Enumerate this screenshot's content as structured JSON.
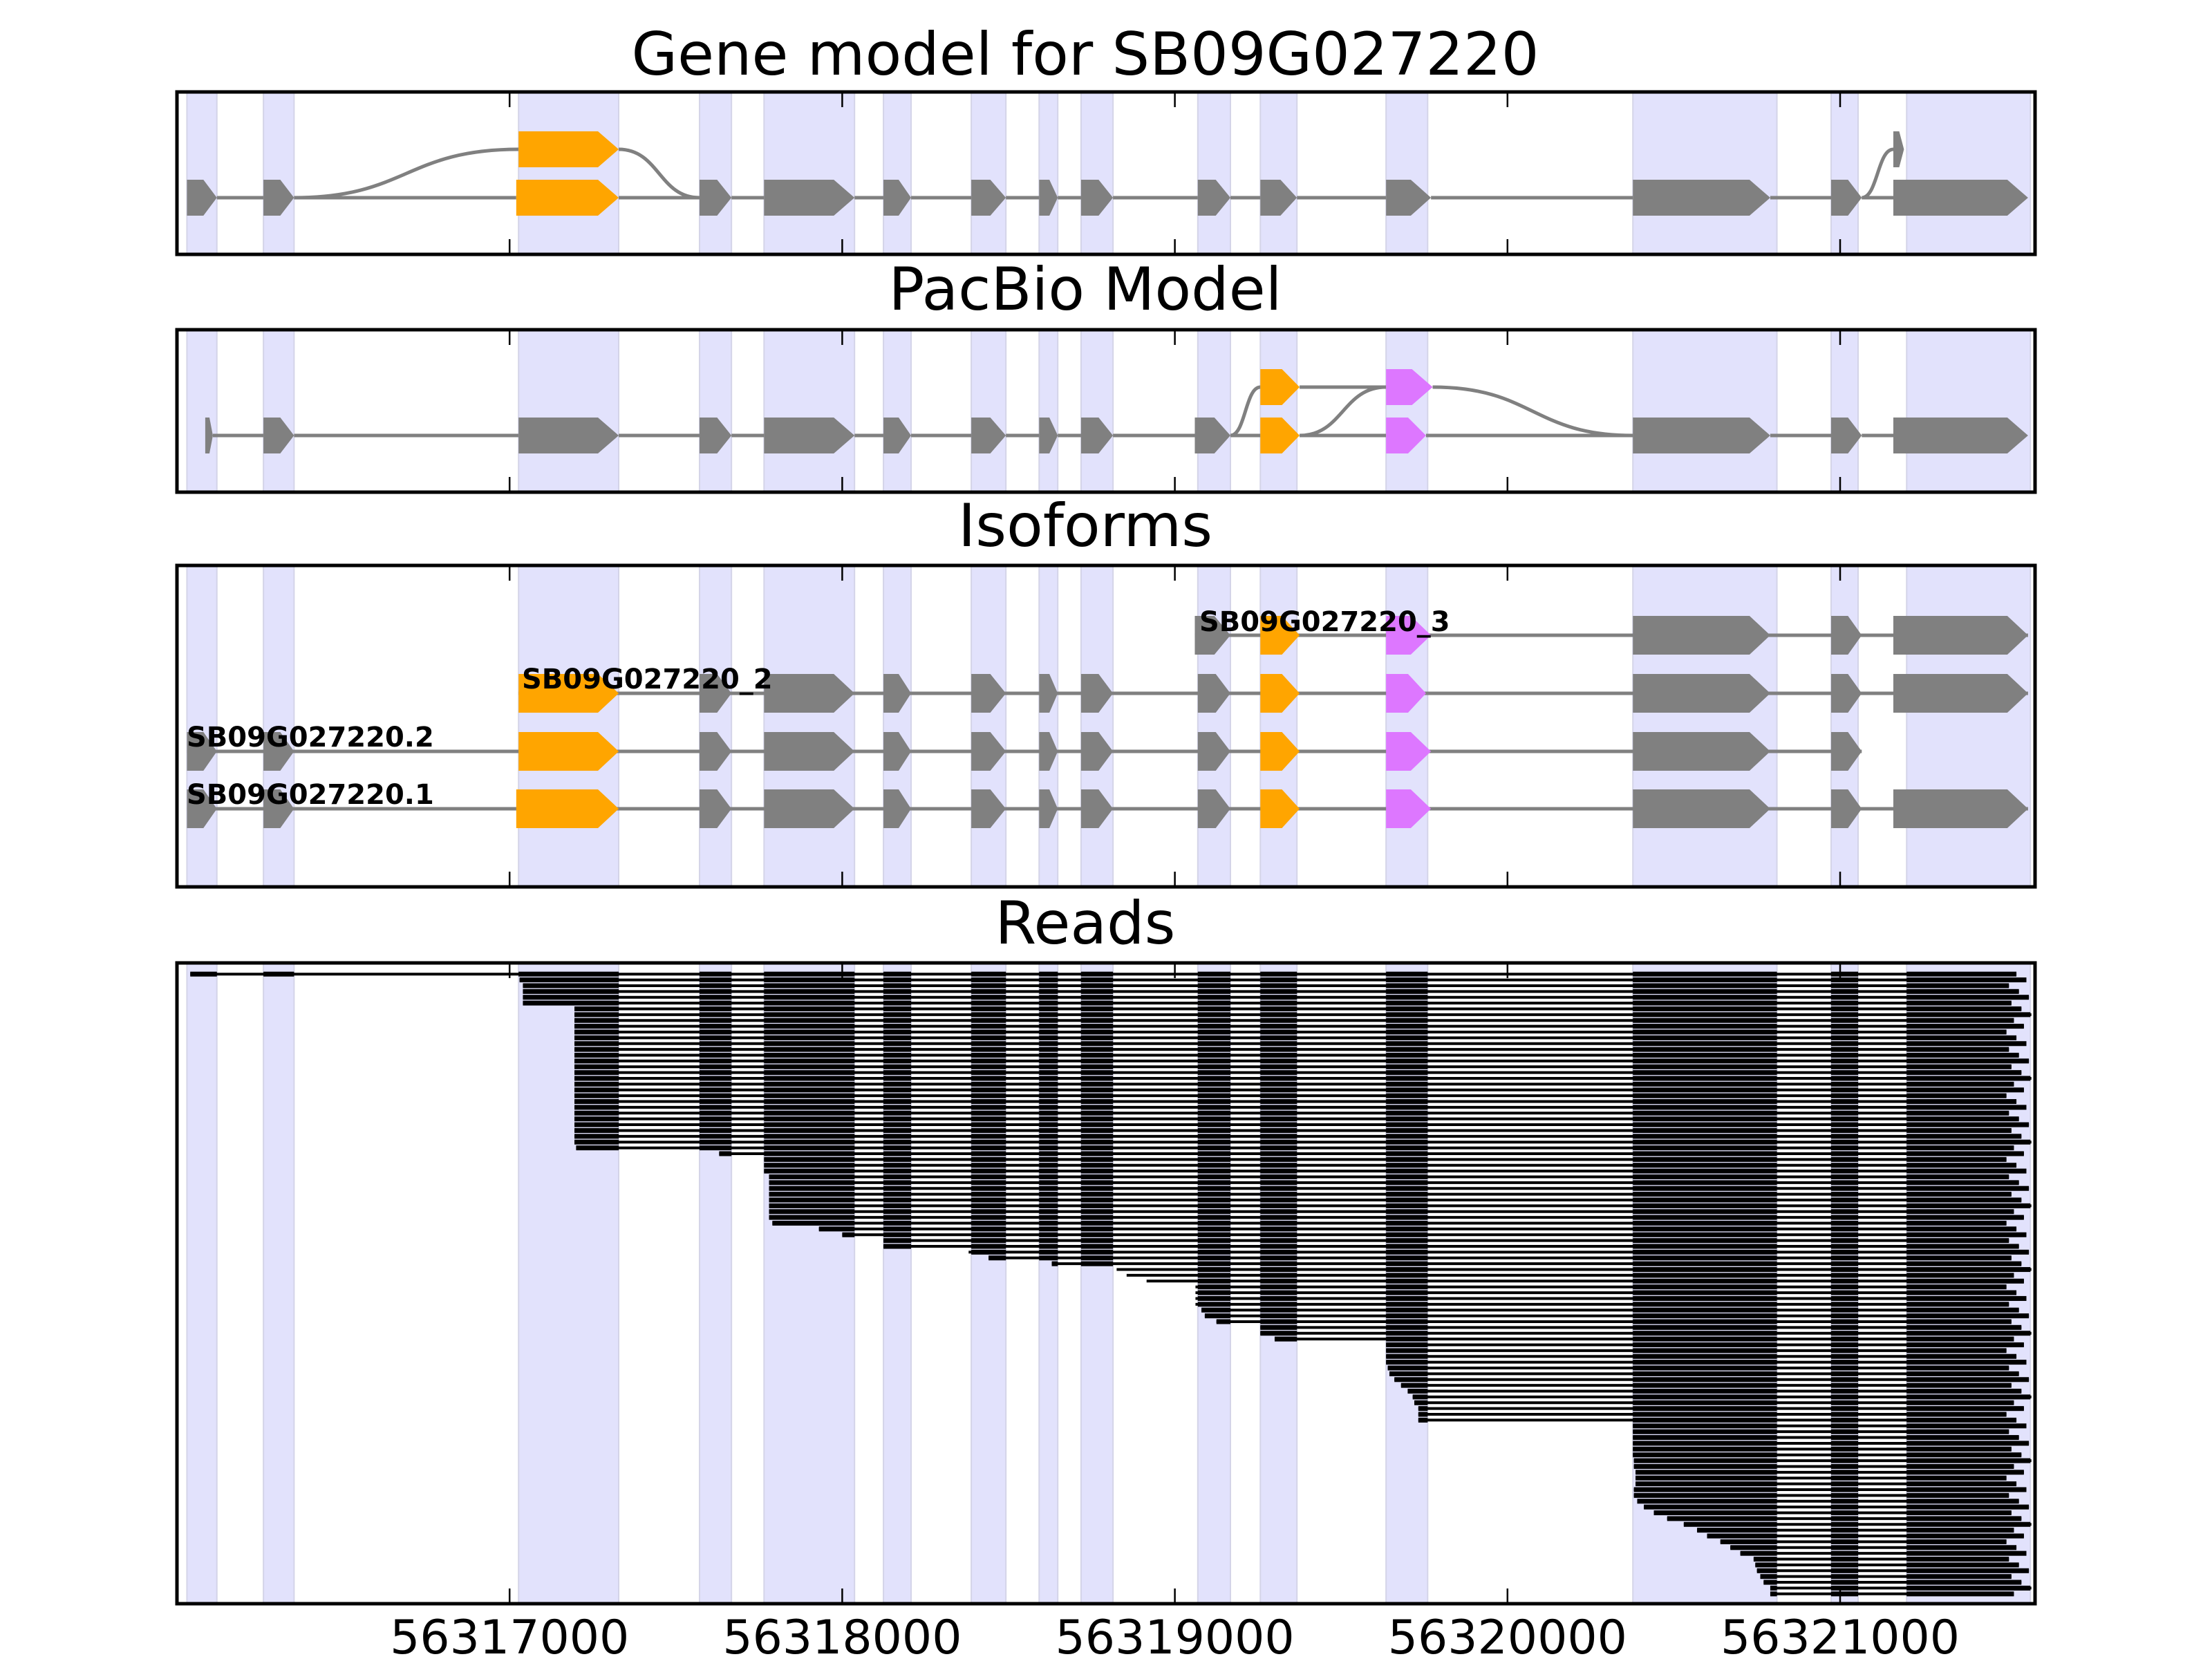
{
  "chart_data": {
    "type": "gene-structure",
    "xlim": [
      56316000,
      56321586
    ],
    "xticks": [
      56317000,
      56318000,
      56319000,
      56320000,
      56321000
    ],
    "xtick_labels": [
      "56317000",
      "56318000",
      "56319000",
      "56320000",
      "56321000"
    ],
    "colors": {
      "exon_default": "#808080",
      "exon_alt_1": "#ffa500",
      "exon_alt_2": "#dd77ff",
      "intron": "#808080",
      "highlight": "#e2e2fc",
      "read": "#000000"
    },
    "highlight_regions": [
      [
        56316030,
        56316120
      ],
      [
        56316260,
        56316352
      ],
      [
        56317027,
        56317328
      ],
      [
        56317571,
        56317667
      ],
      [
        56317765,
        56318037
      ],
      [
        56318124,
        56318207
      ],
      [
        56318388,
        56318492
      ],
      [
        56318592,
        56318648
      ],
      [
        56318718,
        56318814
      ],
      [
        56319069,
        56319167
      ],
      [
        56319257,
        56319367
      ],
      [
        56319635,
        56319760
      ],
      [
        56320377,
        56320810
      ],
      [
        56320973,
        56321054
      ],
      [
        56321200,
        56321572
      ]
    ],
    "panels": [
      {
        "title": "Gene model for SB09G027220",
        "type": "splice-graph",
        "rows": 2,
        "nodes": [
          {
            "id": "n1",
            "start": 56316030,
            "end": 56316120,
            "row": 0,
            "color": "exon_default"
          },
          {
            "id": "n2",
            "start": 56316260,
            "end": 56316352,
            "row": 0,
            "color": "exon_default"
          },
          {
            "id": "n3a",
            "start": 56317027,
            "end": 56317328,
            "row": 1,
            "color": "exon_alt_1"
          },
          {
            "id": "n3b",
            "start": 56317020,
            "end": 56317328,
            "row": 0,
            "color": "exon_alt_1"
          },
          {
            "id": "n4",
            "start": 56317571,
            "end": 56317667,
            "row": 0,
            "color": "exon_default"
          },
          {
            "id": "n5",
            "start": 56317765,
            "end": 56318037,
            "row": 0,
            "color": "exon_default"
          },
          {
            "id": "n6",
            "start": 56318124,
            "end": 56318207,
            "row": 0,
            "color": "exon_default"
          },
          {
            "id": "n7",
            "start": 56318388,
            "end": 56318492,
            "row": 0,
            "color": "exon_default"
          },
          {
            "id": "n8",
            "start": 56318592,
            "end": 56318648,
            "row": 0,
            "color": "exon_default"
          },
          {
            "id": "n9",
            "start": 56318718,
            "end": 56318814,
            "row": 0,
            "color": "exon_default"
          },
          {
            "id": "n10",
            "start": 56319069,
            "end": 56319167,
            "row": 0,
            "color": "exon_default"
          },
          {
            "id": "n11",
            "start": 56319257,
            "end": 56319367,
            "row": 0,
            "color": "exon_default"
          },
          {
            "id": "n12",
            "start": 56319635,
            "end": 56319770,
            "row": 0,
            "color": "exon_default"
          },
          {
            "id": "n13",
            "start": 56320377,
            "end": 56320790,
            "row": 0,
            "color": "exon_default"
          },
          {
            "id": "n14",
            "start": 56320973,
            "end": 56321065,
            "row": 0,
            "color": "exon_default"
          },
          {
            "id": "n15a",
            "start": 56321160,
            "end": 56321192,
            "row": 1,
            "color": "exon_default"
          },
          {
            "id": "n15",
            "start": 56321160,
            "end": 56321565,
            "row": 0,
            "color": "exon_default"
          }
        ],
        "edges": [
          [
            "n1",
            "n2"
          ],
          [
            "n2",
            "n3a"
          ],
          [
            "n2",
            "n3b"
          ],
          [
            "n3a",
            "n4"
          ],
          [
            "n3b",
            "n4"
          ],
          [
            "n4",
            "n5"
          ],
          [
            "n5",
            "n6"
          ],
          [
            "n6",
            "n7"
          ],
          [
            "n7",
            "n8"
          ],
          [
            "n8",
            "n9"
          ],
          [
            "n9",
            "n10"
          ],
          [
            "n10",
            "n11"
          ],
          [
            "n11",
            "n12"
          ],
          [
            "n12",
            "n13"
          ],
          [
            "n13",
            "n14"
          ],
          [
            "n14",
            "n15"
          ],
          [
            "n14",
            "n15a"
          ]
        ]
      },
      {
        "title": "PacBio Model",
        "type": "splice-graph",
        "rows": 2,
        "nodes": [
          {
            "id": "p1",
            "start": 56316085,
            "end": 56316108,
            "row": 0,
            "color": "exon_default"
          },
          {
            "id": "p2",
            "start": 56316260,
            "end": 56316352,
            "row": 0,
            "color": "exon_default"
          },
          {
            "id": "p3",
            "start": 56317027,
            "end": 56317328,
            "row": 0,
            "color": "exon_default"
          },
          {
            "id": "p4",
            "start": 56317571,
            "end": 56317667,
            "row": 0,
            "color": "exon_default"
          },
          {
            "id": "p5",
            "start": 56317765,
            "end": 56318037,
            "row": 0,
            "color": "exon_default"
          },
          {
            "id": "p6",
            "start": 56318124,
            "end": 56318207,
            "row": 0,
            "color": "exon_default"
          },
          {
            "id": "p7",
            "start": 56318388,
            "end": 56318492,
            "row": 0,
            "color": "exon_default"
          },
          {
            "id": "p8",
            "start": 56318592,
            "end": 56318648,
            "row": 0,
            "color": "exon_default"
          },
          {
            "id": "p9",
            "start": 56318718,
            "end": 56318814,
            "row": 0,
            "color": "exon_default"
          },
          {
            "id": "p10",
            "start": 56319060,
            "end": 56319167,
            "row": 0,
            "color": "exon_default"
          },
          {
            "id": "p11a",
            "start": 56319257,
            "end": 56319375,
            "row": 1,
            "color": "exon_alt_1"
          },
          {
            "id": "p11b",
            "start": 56319257,
            "end": 56319375,
            "row": 0,
            "color": "exon_alt_1"
          },
          {
            "id": "p12a",
            "start": 56319635,
            "end": 56319775,
            "row": 1,
            "color": "exon_alt_2"
          },
          {
            "id": "p12b",
            "start": 56319635,
            "end": 56319755,
            "row": 0,
            "color": "exon_alt_2"
          },
          {
            "id": "p13",
            "start": 56320377,
            "end": 56320790,
            "row": 0,
            "color": "exon_default"
          },
          {
            "id": "p14",
            "start": 56320973,
            "end": 56321065,
            "row": 0,
            "color": "exon_default"
          },
          {
            "id": "p15",
            "start": 56321160,
            "end": 56321565,
            "row": 0,
            "color": "exon_default"
          }
        ],
        "edges": [
          [
            "p1",
            "p2"
          ],
          [
            "p2",
            "p3"
          ],
          [
            "p3",
            "p4"
          ],
          [
            "p4",
            "p5"
          ],
          [
            "p5",
            "p6"
          ],
          [
            "p6",
            "p7"
          ],
          [
            "p7",
            "p8"
          ],
          [
            "p8",
            "p9"
          ],
          [
            "p9",
            "p10"
          ],
          [
            "p10",
            "p11a"
          ],
          [
            "p10",
            "p11b"
          ],
          [
            "p11a",
            "p12a"
          ],
          [
            "p11b",
            "p12a"
          ],
          [
            "p11b",
            "p12b"
          ],
          [
            "p12a",
            "p13"
          ],
          [
            "p12b",
            "p13"
          ],
          [
            "p13",
            "p14"
          ],
          [
            "p14",
            "p15"
          ]
        ]
      },
      {
        "title": "Isoforms",
        "type": "isoforms",
        "isoforms": [
          {
            "label": "SB09G027220.1",
            "exons": [
              [
                56316030,
                56316120,
                "exon_default"
              ],
              [
                56316260,
                56316352,
                "exon_default"
              ],
              [
                56317020,
                56317328,
                "exon_alt_1"
              ],
              [
                56317571,
                56317667,
                "exon_default"
              ],
              [
                56317765,
                56318037,
                "exon_default"
              ],
              [
                56318124,
                56318207,
                "exon_default"
              ],
              [
                56318388,
                56318492,
                "exon_default"
              ],
              [
                56318592,
                56318648,
                "exon_default"
              ],
              [
                56318718,
                56318814,
                "exon_default"
              ],
              [
                56319069,
                56319167,
                "exon_default"
              ],
              [
                56319257,
                56319375,
                "exon_alt_1"
              ],
              [
                56319635,
                56319770,
                "exon_alt_2"
              ],
              [
                56320377,
                56320790,
                "exon_default"
              ],
              [
                56320973,
                56321065,
                "exon_default"
              ],
              [
                56321160,
                56321565,
                "exon_default"
              ]
            ]
          },
          {
            "label": "SB09G027220.2",
            "exons": [
              [
                56316030,
                56316120,
                "exon_default"
              ],
              [
                56316260,
                56316352,
                "exon_default"
              ],
              [
                56317027,
                56317328,
                "exon_alt_1"
              ],
              [
                56317571,
                56317667,
                "exon_default"
              ],
              [
                56317765,
                56318037,
                "exon_default"
              ],
              [
                56318124,
                56318207,
                "exon_default"
              ],
              [
                56318388,
                56318492,
                "exon_default"
              ],
              [
                56318592,
                56318648,
                "exon_default"
              ],
              [
                56318718,
                56318814,
                "exon_default"
              ],
              [
                56319069,
                56319167,
                "exon_default"
              ],
              [
                56319257,
                56319375,
                "exon_alt_1"
              ],
              [
                56319635,
                56319770,
                "exon_alt_2"
              ],
              [
                56320377,
                56320790,
                "exon_default"
              ],
              [
                56320973,
                56321065,
                "exon_default"
              ]
            ]
          },
          {
            "label": "SB09G027220_2",
            "exons": [
              [
                56317027,
                56317328,
                "exon_alt_1"
              ],
              [
                56317571,
                56317667,
                "exon_default"
              ],
              [
                56317765,
                56318037,
                "exon_default"
              ],
              [
                56318124,
                56318207,
                "exon_default"
              ],
              [
                56318388,
                56318492,
                "exon_default"
              ],
              [
                56318592,
                56318648,
                "exon_default"
              ],
              [
                56318718,
                56318814,
                "exon_default"
              ],
              [
                56319069,
                56319167,
                "exon_default"
              ],
              [
                56319257,
                56319375,
                "exon_alt_1"
              ],
              [
                56319635,
                56319755,
                "exon_alt_2"
              ],
              [
                56320377,
                56320790,
                "exon_default"
              ],
              [
                56320973,
                56321065,
                "exon_default"
              ],
              [
                56321160,
                56321565,
                "exon_default"
              ]
            ]
          },
          {
            "label": "SB09G027220_3",
            "exons": [
              [
                56319060,
                56319167,
                "exon_default"
              ],
              [
                56319257,
                56319375,
                "exon_alt_1"
              ],
              [
                56319635,
                56319770,
                "exon_alt_2"
              ],
              [
                56320377,
                56320790,
                "exon_default"
              ],
              [
                56320973,
                56321065,
                "exon_default"
              ],
              [
                56321160,
                56321565,
                "exon_default"
              ]
            ]
          }
        ]
      },
      {
        "title": "Reads",
        "type": "reads",
        "read_count": 108,
        "read_start_profile": [
          [
            1,
            56316040
          ],
          [
            2,
            56317030
          ],
          [
            3,
            56317040
          ],
          [
            6,
            56317040
          ],
          [
            7,
            56317195
          ],
          [
            31,
            56317200
          ],
          [
            32,
            56317630
          ],
          [
            33,
            56317765
          ],
          [
            35,
            56317765
          ],
          [
            36,
            56317780
          ],
          [
            44,
            56317790
          ],
          [
            45,
            56317930
          ],
          [
            46,
            56318000
          ],
          [
            47,
            56318124
          ],
          [
            48,
            56318124
          ],
          [
            49,
            56318380
          ],
          [
            50,
            56318440
          ],
          [
            51,
            56318630
          ],
          [
            52,
            56318825
          ],
          [
            53,
            56318855
          ],
          [
            54,
            56318915
          ],
          [
            55,
            56319062
          ],
          [
            58,
            56319062
          ],
          [
            59,
            56319080
          ],
          [
            60,
            56319090
          ],
          [
            61,
            56319125
          ],
          [
            62,
            56319257
          ],
          [
            63,
            56319257
          ],
          [
            64,
            56319300
          ],
          [
            65,
            56319635
          ],
          [
            68,
            56319635
          ],
          [
            69,
            56319640
          ],
          [
            70,
            56319645
          ],
          [
            71,
            56319660
          ],
          [
            72,
            56319680
          ],
          [
            73,
            56319700
          ],
          [
            74,
            56319715
          ],
          [
            75,
            56319720
          ],
          [
            76,
            56319732
          ],
          [
            78,
            56319732
          ],
          [
            79,
            56320377
          ],
          [
            84,
            56320377
          ],
          [
            85,
            56320380
          ],
          [
            87,
            56320385
          ],
          [
            90,
            56320380
          ],
          [
            92,
            56320390
          ],
          [
            93,
            56320410
          ],
          [
            94,
            56320440
          ],
          [
            95,
            56320480
          ],
          [
            96,
            56320530
          ],
          [
            97,
            56320570
          ],
          [
            98,
            56320600
          ],
          [
            99,
            56320640
          ],
          [
            100,
            56320670
          ],
          [
            101,
            56320700
          ],
          [
            102,
            56320740
          ],
          [
            103,
            56320745
          ],
          [
            104,
            56320750
          ],
          [
            105,
            56320760
          ],
          [
            106,
            56320770
          ],
          [
            107,
            56320790
          ],
          [
            108,
            56320790
          ]
        ],
        "read_end_range": [
          56321500,
          56321575
        ]
      }
    ]
  }
}
